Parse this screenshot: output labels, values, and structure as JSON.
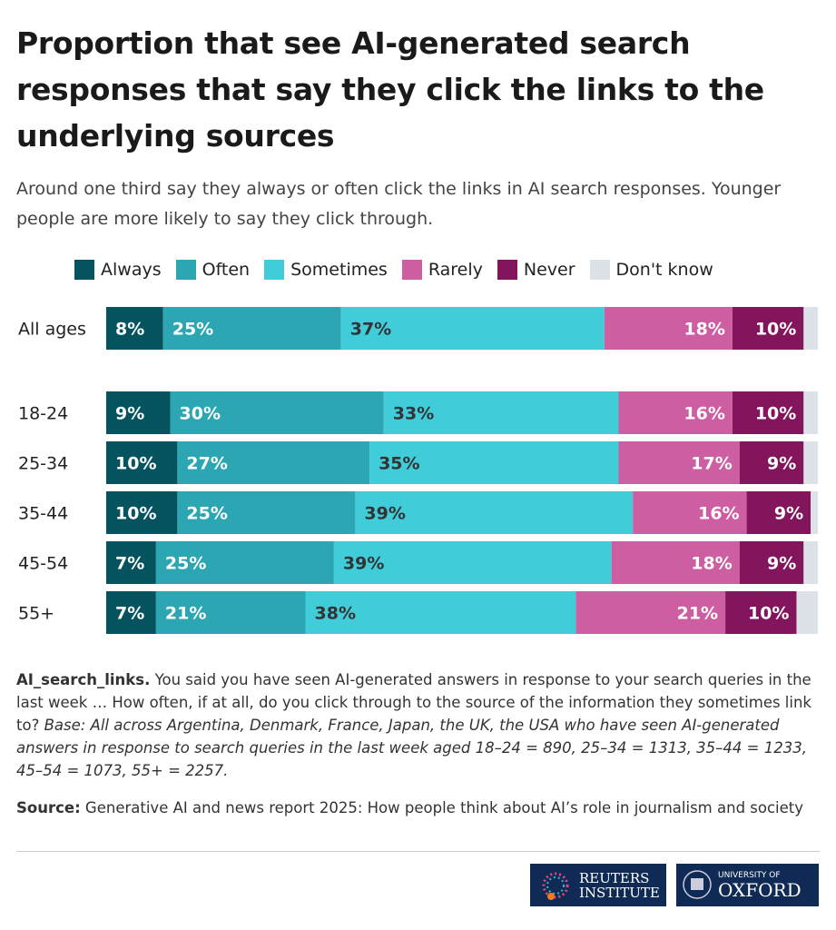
{
  "title": "Proportion that see AI-generated search responses that say they click the links to the underlying sources",
  "subtitle": "Around one third say they always or often click the links in AI search responses. Younger people are more likely to say they click through.",
  "chart_data": {
    "type": "bar",
    "orientation": "horizontal",
    "stacked": true,
    "categories": [
      "All ages",
      "18-24",
      "25-34",
      "35-44",
      "45-54",
      "55+"
    ],
    "series": [
      {
        "name": "Always",
        "color": "#04535f",
        "values": [
          8,
          9,
          10,
          10,
          7,
          7
        ]
      },
      {
        "name": "Often",
        "color": "#2ca6b3",
        "values": [
          25,
          30,
          27,
          25,
          25,
          21
        ]
      },
      {
        "name": "Sometimes",
        "color": "#41ccda",
        "values": [
          37,
          33,
          35,
          39,
          39,
          38
        ]
      },
      {
        "name": "Rarely",
        "color": "#cd5ea2",
        "values": [
          18,
          16,
          17,
          16,
          18,
          21
        ]
      },
      {
        "name": "Never",
        "color": "#83155c",
        "values": [
          10,
          10,
          9,
          9,
          9,
          10
        ]
      },
      {
        "name": "Don't know",
        "color": "#dde1e8",
        "values": [
          2,
          2,
          2,
          1,
          2,
          3
        ]
      }
    ],
    "data_labels_shown_for": [
      "Always",
      "Often",
      "Sometimes",
      "Rarely",
      "Never"
    ],
    "xlim": [
      0,
      100
    ],
    "legend": "top"
  },
  "note": {
    "bold": "AI_search_links.",
    "text": " You said you have seen AI-generated answers in response to your search queries in the last week … How often, if at all, do you click through to the source of the information they sometimes link to? ",
    "italic": "Base: All across Argentina, Denmark, France, Japan, the UK, the USA who have seen AI-generated answers in response to search queries in the last week aged 18–24 = 890, 25–34 = 1313, 35–44 = 1233, 45–54 = 1073, 55+ = 2257."
  },
  "source": {
    "bold": "Source:",
    "text": " Generative AI and news report 2025: How people think about AI’s role in journalism and society"
  },
  "logos": {
    "reuters": [
      "REUTERS",
      "INSTITUTE"
    ],
    "oxford": [
      "UNIVERSITY OF",
      "OXFORD"
    ]
  }
}
